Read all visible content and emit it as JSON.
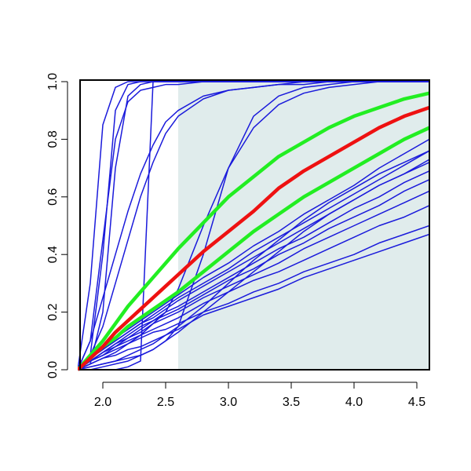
{
  "chart_data": {
    "type": "line",
    "x": [
      1.8,
      1.9,
      2.0,
      2.1,
      2.2,
      2.3,
      2.4,
      2.5,
      2.6,
      2.8,
      3.0,
      3.2,
      3.4,
      3.6,
      3.8,
      4.0,
      4.2,
      4.4,
      4.6
    ],
    "xlim": [
      1.8,
      4.6
    ],
    "ylim": [
      0,
      1
    ],
    "xticks": [
      {
        "value": 2,
        "label": "2.0"
      },
      {
        "value": 2.5,
        "label": "2.5"
      },
      {
        "value": 3,
        "label": "3.0"
      },
      {
        "value": 3.5,
        "label": "3.5"
      },
      {
        "value": 4,
        "label": "4.0"
      },
      {
        "value": 4.5,
        "label": "4.5"
      }
    ],
    "yticks": [
      {
        "value": 0,
        "label": "0.0"
      },
      {
        "value": 0.2,
        "label": "0.2"
      },
      {
        "value": 0.4,
        "label": "0.4"
      },
      {
        "value": 0.6,
        "label": "0.6"
      },
      {
        "value": 0.8,
        "label": "0.8"
      },
      {
        "value": 1,
        "label": "1.0"
      }
    ],
    "shade_start": 2.6,
    "shade_color": "#e0ecec",
    "series": [
      {
        "color": "#1a1adb",
        "width": 1.5,
        "values": [
          0,
          0.3,
          0.85,
          0.98,
          1,
          1,
          1,
          1,
          1,
          1,
          1,
          1,
          1,
          1,
          1,
          1,
          1,
          1,
          1
        ]
      },
      {
        "color": "#1a1adb",
        "width": 1.5,
        "values": [
          0,
          0.05,
          0.4,
          0.9,
          0.99,
          1,
          1,
          1,
          1,
          1,
          1,
          1,
          1,
          1,
          1,
          1,
          1,
          1,
          1
        ]
      },
      {
        "color": "#1a1adb",
        "width": 1.5,
        "values": [
          0,
          0.02,
          0.2,
          0.7,
          0.95,
          0.99,
          1,
          1,
          1,
          1,
          1,
          1,
          1,
          1,
          1,
          1,
          1,
          1,
          1
        ]
      },
      {
        "color": "#1a1adb",
        "width": 1.5,
        "values": [
          0,
          0,
          0,
          0,
          0.01,
          0.03,
          1,
          1,
          1,
          1,
          1,
          1,
          1,
          1,
          1,
          1,
          1,
          1,
          1
        ]
      },
      {
        "color": "#1a1adb",
        "width": 1.5,
        "values": [
          0,
          0.1,
          0.45,
          0.8,
          0.93,
          0.97,
          0.98,
          0.99,
          0.99,
          1,
          1,
          1,
          1,
          1,
          1,
          1,
          1,
          1,
          1
        ]
      },
      {
        "color": "#1a1adb",
        "width": 1.5,
        "values": [
          0,
          0.1,
          0.25,
          0.4,
          0.55,
          0.68,
          0.78,
          0.86,
          0.9,
          0.95,
          0.97,
          0.98,
          0.99,
          0.99,
          1,
          1,
          1,
          1,
          1
        ]
      },
      {
        "color": "#1a1adb",
        "width": 1.5,
        "values": [
          0,
          0.05,
          0.15,
          0.3,
          0.45,
          0.6,
          0.72,
          0.82,
          0.88,
          0.94,
          0.97,
          0.98,
          0.99,
          1,
          1,
          1,
          1,
          1,
          1
        ]
      },
      {
        "color": "#1a1adb",
        "width": 1.5,
        "values": [
          0,
          0.01,
          0.02,
          0.03,
          0.04,
          0.05,
          0.07,
          0.1,
          0.15,
          0.4,
          0.7,
          0.88,
          0.95,
          0.98,
          0.99,
          1,
          1,
          1,
          1
        ]
      },
      {
        "color": "#1a1adb",
        "width": 1.5,
        "values": [
          0,
          0.02,
          0.04,
          0.06,
          0.09,
          0.12,
          0.16,
          0.2,
          0.28,
          0.5,
          0.7,
          0.84,
          0.92,
          0.96,
          0.98,
          0.99,
          1,
          1,
          1
        ]
      },
      {
        "color": "#1a1adb",
        "width": 1.5,
        "values": [
          0,
          0.02,
          0.04,
          0.05,
          0.07,
          0.08,
          0.1,
          0.12,
          0.14,
          0.19,
          0.22,
          0.25,
          0.28,
          0.32,
          0.35,
          0.38,
          0.41,
          0.44,
          0.47
        ]
      },
      {
        "color": "#1a1adb",
        "width": 1.5,
        "values": [
          0,
          0.03,
          0.05,
          0.07,
          0.09,
          0.11,
          0.13,
          0.14,
          0.16,
          0.2,
          0.23,
          0.27,
          0.3,
          0.34,
          0.37,
          0.4,
          0.44,
          0.47,
          0.5
        ]
      },
      {
        "color": "#1a1adb",
        "width": 1.5,
        "values": [
          0,
          0.03,
          0.05,
          0.08,
          0.1,
          0.12,
          0.14,
          0.16,
          0.18,
          0.23,
          0.27,
          0.31,
          0.34,
          0.38,
          0.42,
          0.46,
          0.5,
          0.53,
          0.57
        ]
      },
      {
        "color": "#1a1adb",
        "width": 1.5,
        "values": [
          0,
          0.03,
          0.06,
          0.08,
          0.11,
          0.13,
          0.16,
          0.18,
          0.2,
          0.25,
          0.29,
          0.33,
          0.37,
          0.42,
          0.46,
          0.5,
          0.54,
          0.58,
          0.62
        ]
      },
      {
        "color": "#1a1adb",
        "width": 1.5,
        "values": [
          0,
          0.03,
          0.06,
          0.09,
          0.11,
          0.14,
          0.17,
          0.19,
          0.21,
          0.26,
          0.31,
          0.35,
          0.4,
          0.44,
          0.49,
          0.53,
          0.57,
          0.62,
          0.66
        ]
      },
      {
        "color": "#1a1adb",
        "width": 1.5,
        "values": [
          0,
          0.03,
          0.06,
          0.09,
          0.12,
          0.15,
          0.17,
          0.2,
          0.22,
          0.27,
          0.32,
          0.37,
          0.42,
          0.46,
          0.51,
          0.56,
          0.6,
          0.65,
          0.69
        ]
      },
      {
        "color": "#1a1adb",
        "width": 1.5,
        "values": [
          0,
          0.04,
          0.07,
          0.1,
          0.13,
          0.16,
          0.18,
          0.21,
          0.24,
          0.29,
          0.34,
          0.39,
          0.44,
          0.49,
          0.54,
          0.59,
          0.64,
          0.68,
          0.73
        ]
      },
      {
        "color": "#1a1adb",
        "width": 1.5,
        "values": [
          0,
          0.04,
          0.07,
          0.1,
          0.13,
          0.16,
          0.19,
          0.22,
          0.25,
          0.3,
          0.35,
          0.41,
          0.46,
          0.51,
          0.56,
          0.61,
          0.66,
          0.71,
          0.76
        ]
      },
      {
        "color": "#1a1adb",
        "width": 1.5,
        "values": [
          0,
          0.04,
          0.07,
          0.11,
          0.14,
          0.17,
          0.2,
          0.23,
          0.26,
          0.32,
          0.37,
          0.43,
          0.48,
          0.54,
          0.59,
          0.64,
          0.7,
          0.75,
          0.8
        ]
      },
      {
        "color": "#1a1adb",
        "width": 1.5,
        "values": [
          0,
          0,
          0.01,
          0.02,
          0.03,
          0.05,
          0.07,
          0.1,
          0.13,
          0.2,
          0.27,
          0.34,
          0.41,
          0.48,
          0.54,
          0.59,
          0.64,
          0.68,
          0.72
        ]
      },
      {
        "color": "#1a1adb",
        "width": 1.5,
        "values": [
          0,
          0.01,
          0.02,
          0.03,
          0.05,
          0.07,
          0.09,
          0.12,
          0.15,
          0.22,
          0.3,
          0.38,
          0.45,
          0.52,
          0.58,
          0.63,
          0.68,
          0.72,
          0.76
        ]
      },
      {
        "color": "#22ee22",
        "width": 4.5,
        "values": [
          0,
          0.05,
          0.1,
          0.16,
          0.22,
          0.27,
          0.32,
          0.37,
          0.42,
          0.51,
          0.6,
          0.67,
          0.74,
          0.79,
          0.84,
          0.88,
          0.91,
          0.94,
          0.96
        ]
      },
      {
        "color": "#22ee22",
        "width": 4.5,
        "values": [
          0,
          0.04,
          0.08,
          0.11,
          0.15,
          0.18,
          0.21,
          0.24,
          0.27,
          0.34,
          0.41,
          0.48,
          0.54,
          0.6,
          0.65,
          0.7,
          0.75,
          0.8,
          0.84
        ]
      },
      {
        "color": "#ee1111",
        "width": 4.5,
        "values": [
          0,
          0.04,
          0.08,
          0.13,
          0.17,
          0.21,
          0.25,
          0.29,
          0.33,
          0.41,
          0.48,
          0.55,
          0.63,
          0.69,
          0.74,
          0.79,
          0.84,
          0.88,
          0.91
        ]
      }
    ]
  }
}
